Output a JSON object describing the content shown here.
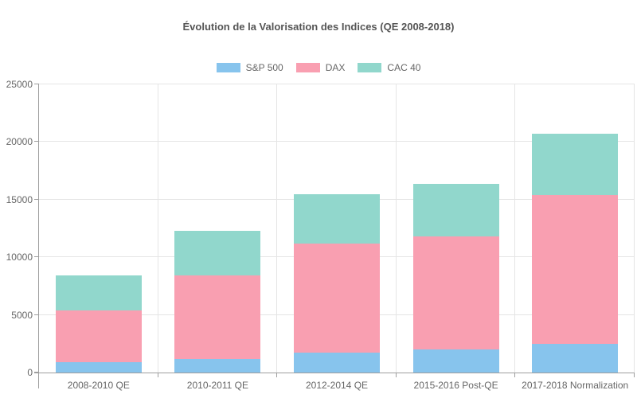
{
  "chart_data": {
    "type": "bar",
    "stacked": true,
    "title": "Évolution de la Valorisation des Indices (QE 2008-2018)",
    "categories": [
      "2008-2010 QE",
      "2010-2011 QE",
      "2012-2014 QE",
      "2015-2016 Post-QE",
      "2017-2018 Normalization"
    ],
    "series": [
      {
        "name": "S&P 500",
        "color": "#87C4ED",
        "values": [
          900,
          1200,
          1700,
          2000,
          2500
        ]
      },
      {
        "name": "DAX",
        "color": "#F99FB1",
        "values": [
          4500,
          7200,
          9500,
          9800,
          12900
        ]
      },
      {
        "name": "CAC 40",
        "color": "#91D7CC",
        "values": [
          3000,
          3900,
          4300,
          4600,
          5300
        ]
      }
    ],
    "stacked_totals": [
      8400,
      12300,
      15500,
      16400,
      20700
    ],
    "xlabel": "",
    "ylabel": "",
    "ylim": [
      0,
      25000
    ],
    "y_ticks": [
      {
        "value": 0,
        "label": "0"
      },
      {
        "value": 5000,
        "label": "5000"
      },
      {
        "value": 10000,
        "label": "10000"
      },
      {
        "value": 15000,
        "label": "15000"
      },
      {
        "value": 20000,
        "label": "20000"
      },
      {
        "value": 25000,
        "label": "25000"
      }
    ],
    "grid": true,
    "legend_position": "top-center",
    "colors": {
      "title_text": "#555555",
      "tick_text": "#666666",
      "gridline": "#e5e5e5",
      "axis_line": "#9e9e9e",
      "background": "#ffffff"
    }
  }
}
